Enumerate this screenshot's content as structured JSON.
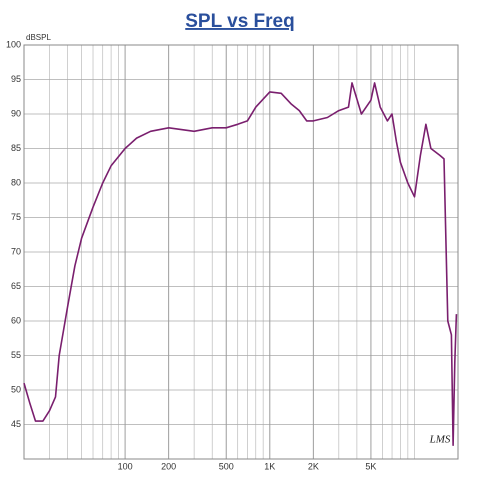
{
  "chart_data": {
    "type": "line",
    "title": "SPL vs Freq",
    "y_label": "dBSPL",
    "annotation": "LMS",
    "log_x": true,
    "grid": true,
    "xlim": [
      20,
      20000
    ],
    "ylim": [
      40,
      100
    ],
    "xticks": [
      {
        "value": 100,
        "label": "100"
      },
      {
        "value": 200,
        "label": "200"
      },
      {
        "value": 500,
        "label": "500"
      },
      {
        "value": 1000,
        "label": "1K"
      },
      {
        "value": 2000,
        "label": "2K"
      },
      {
        "value": 5000,
        "label": "5K"
      }
    ],
    "yticks": [
      45,
      50,
      55,
      60,
      65,
      70,
      75,
      80,
      85,
      90,
      95,
      100
    ],
    "series": [
      {
        "color": "#7a1f6e",
        "x": [
          20,
          22,
          24,
          27,
          30,
          33,
          35,
          40,
          45,
          50,
          60,
          70,
          80,
          100,
          120,
          150,
          200,
          300,
          400,
          500,
          600,
          700,
          800,
          1000,
          1200,
          1400,
          1600,
          1800,
          2000,
          2500,
          3000,
          3500,
          3700,
          4300,
          5000,
          5300,
          5800,
          6500,
          7000,
          7500,
          8000,
          9000,
          10000,
          11000,
          12000,
          13000,
          15000,
          16000,
          17000,
          18000,
          18500,
          19000,
          19500
        ],
        "values": [
          51,
          48,
          45.5,
          45.5,
          47,
          49,
          55,
          62,
          68,
          72,
          76.5,
          80,
          82.5,
          85,
          86.5,
          87.5,
          88,
          87.5,
          88,
          88,
          88.5,
          89,
          91,
          93.2,
          93,
          91.5,
          90.5,
          89,
          89,
          89.5,
          90.5,
          91,
          94.5,
          90,
          92,
          94.5,
          91,
          89,
          90,
          86,
          83,
          80,
          78,
          84,
          88.5,
          85,
          84,
          83.5,
          60,
          58,
          42,
          54,
          61
        ]
      }
    ]
  }
}
